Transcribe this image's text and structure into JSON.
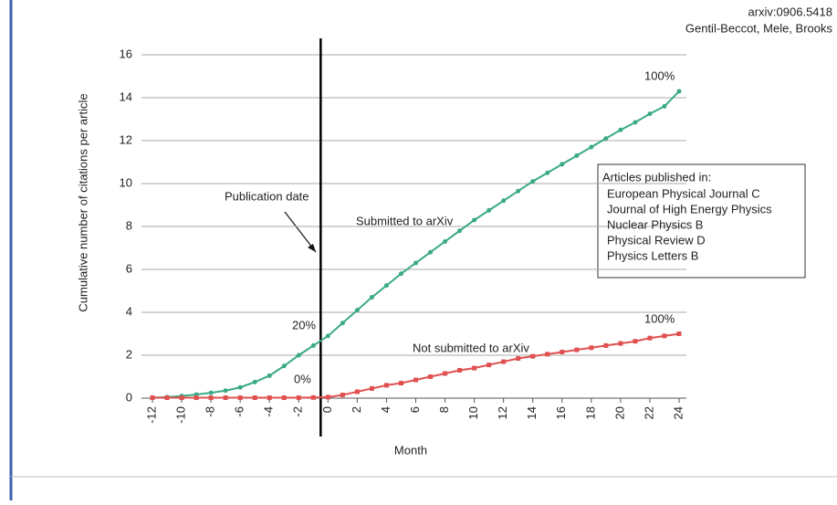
{
  "chart_data": {
    "type": "line",
    "source": "arxiv:0906.5418",
    "authors": "Gentil-Beccot, Mele, Brooks",
    "x_label": "Month",
    "y_label": "Cumulative number of citations per article",
    "x": [
      -12,
      -11,
      -10,
      -9,
      -8,
      -7,
      -6,
      -5,
      -4,
      -3,
      -2,
      -1,
      0,
      1,
      2,
      3,
      4,
      5,
      6,
      7,
      8,
      9,
      10,
      11,
      12,
      13,
      14,
      15,
      16,
      17,
      18,
      19,
      20,
      21,
      22,
      23,
      24
    ],
    "series": [
      {
        "name": "Submitted to arXiv",
        "color": "#3aaa85",
        "values": [
          0.02,
          0.05,
          0.1,
          0.17,
          0.25,
          0.35,
          0.5,
          0.75,
          1.05,
          1.5,
          2.0,
          2.45,
          2.9,
          3.5,
          4.1,
          4.7,
          5.25,
          5.8,
          6.3,
          6.8,
          7.3,
          7.8,
          8.3,
          8.75,
          9.2,
          9.65,
          10.1,
          10.5,
          10.9,
          11.3,
          11.7,
          12.1,
          12.5,
          12.85,
          13.25,
          13.6,
          14.3
        ]
      },
      {
        "name": "Not submitted to arXiv",
        "color": "#e05050",
        "values": [
          0.02,
          0.02,
          0.02,
          0.02,
          0.02,
          0.02,
          0.02,
          0.02,
          0.02,
          0.02,
          0.02,
          0.03,
          0.05,
          0.15,
          0.3,
          0.45,
          0.6,
          0.7,
          0.85,
          1.0,
          1.15,
          1.3,
          1.4,
          1.55,
          1.7,
          1.85,
          1.95,
          2.05,
          2.15,
          2.25,
          2.35,
          2.45,
          2.55,
          2.65,
          2.8,
          2.9,
          3.0
        ]
      }
    ],
    "series_start_label": [
      "20%",
      "0%"
    ],
    "series_end_label": [
      "100%",
      "100%"
    ],
    "publication_date": {
      "label": "Publication date",
      "x": -0.5
    },
    "legend_title": "Articles published in:",
    "journals": [
      "European Physical Journal C",
      "Journal of High Energy Physics",
      "Nuclear Physics B",
      "Physical Review D",
      "Physics Letters B"
    ],
    "xlim": [
      -12.75,
      24.5
    ],
    "ylim": [
      0,
      16
    ],
    "xticks": [
      -12,
      -10,
      -8,
      -6,
      -4,
      -2,
      0,
      2,
      4,
      6,
      8,
      10,
      12,
      14,
      16,
      18,
      20,
      22,
      24
    ],
    "yticks": [
      0,
      2,
      4,
      6,
      8,
      10,
      12,
      14,
      16
    ],
    "grid": true
  }
}
